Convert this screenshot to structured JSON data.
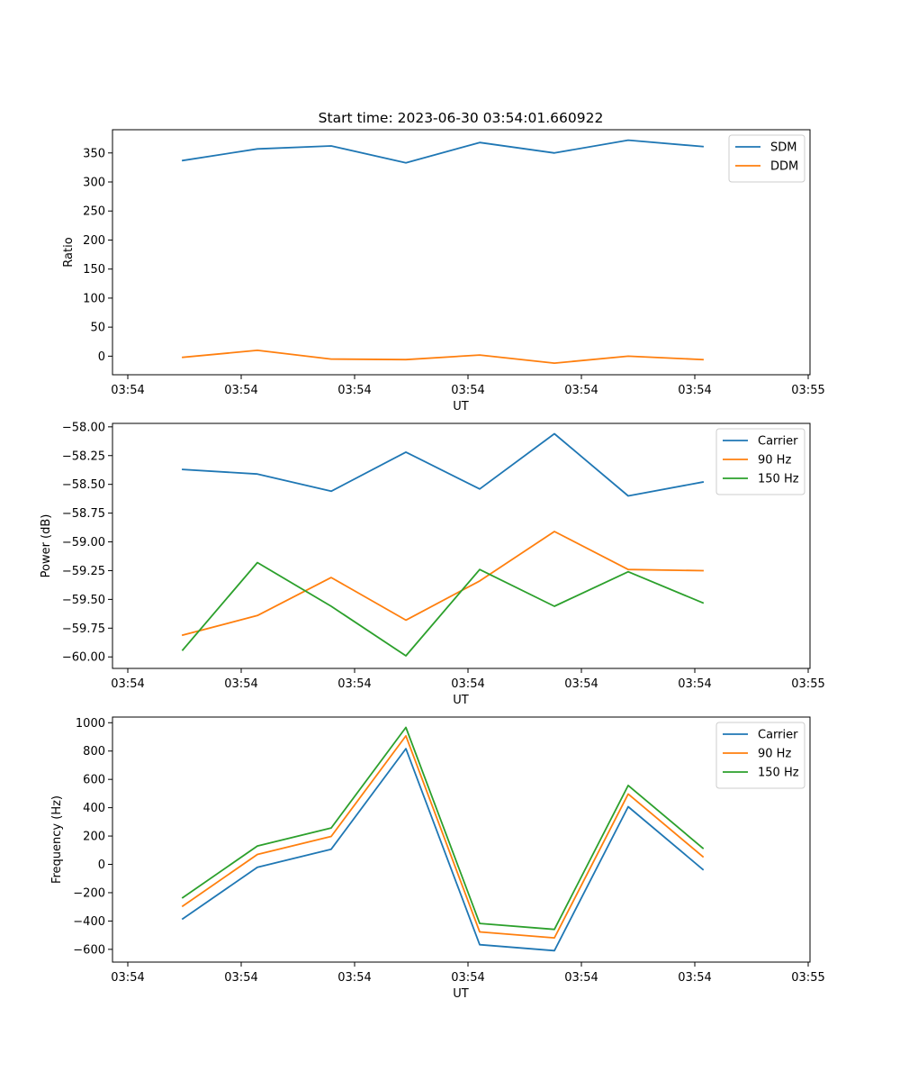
{
  "figure": {
    "title": "Start time: 2023-06-30 03:54:01.660922"
  },
  "chart_data": [
    {
      "type": "line",
      "xlabel": "UT",
      "ylabel": "Ratio",
      "x_tick_labels": [
        "03:54",
        "03:54",
        "03:54",
        "03:54",
        "03:54",
        "03:54",
        "03:55"
      ],
      "ylim": [
        -32,
        390
      ],
      "yticks": [
        0,
        50,
        100,
        150,
        200,
        250,
        300,
        350
      ],
      "legend_position": "top-right",
      "grid": false,
      "series": [
        {
          "name": "SDM",
          "color": "#1f77b4",
          "values": [
            337,
            357,
            362,
            333,
            368,
            350,
            372,
            361
          ]
        },
        {
          "name": "DDM",
          "color": "#ff7f0e",
          "values": [
            -2,
            10,
            -5,
            -6,
            2,
            -12,
            0,
            -6
          ]
        }
      ]
    },
    {
      "type": "line",
      "xlabel": "UT",
      "ylabel": "Power (dB)",
      "x_tick_labels": [
        "03:54",
        "03:54",
        "03:54",
        "03:54",
        "03:54",
        "03:54",
        "03:55"
      ],
      "ylim": [
        -60.1,
        -57.97
      ],
      "yticks": [
        -60.0,
        -59.75,
        -59.5,
        -59.25,
        -59.0,
        -58.75,
        -58.5,
        -58.25,
        -58.0
      ],
      "ytick_labels": [
        "−60.00",
        "−59.75",
        "−59.50",
        "−59.25",
        "−59.00",
        "−58.75",
        "−58.50",
        "−58.25",
        "−58.00"
      ],
      "legend_position": "top-right",
      "grid": false,
      "series": [
        {
          "name": "Carrier",
          "color": "#1f77b4",
          "values": [
            -58.37,
            -58.41,
            -58.56,
            -58.22,
            -58.54,
            -58.06,
            -58.6,
            -58.48
          ]
        },
        {
          "name": "90 Hz",
          "color": "#ff7f0e",
          "values": [
            -59.81,
            -59.64,
            -59.31,
            -59.68,
            -59.34,
            -58.91,
            -59.24,
            -59.25
          ]
        },
        {
          "name": "150 Hz",
          "color": "#2ca02c",
          "values": [
            -59.94,
            -59.18,
            -59.56,
            -59.99,
            -59.24,
            -59.56,
            -59.26,
            -59.53
          ]
        }
      ]
    },
    {
      "type": "line",
      "xlabel": "UT",
      "ylabel": "Frequency (Hz)",
      "x_tick_labels": [
        "03:54",
        "03:54",
        "03:54",
        "03:54",
        "03:54",
        "03:54",
        "03:55"
      ],
      "ylim": [
        -690,
        1040
      ],
      "yticks": [
        -600,
        -400,
        -200,
        0,
        200,
        400,
        600,
        800,
        1000
      ],
      "ytick_labels": [
        "−600",
        "−400",
        "−200",
        "0",
        "200",
        "400",
        "600",
        "800",
        "1000"
      ],
      "legend_position": "top-right",
      "grid": false,
      "series": [
        {
          "name": "Carrier",
          "color": "#1f77b4",
          "values": [
            -385,
            -20,
            107,
            817,
            -567,
            -609,
            407,
            -36
          ]
        },
        {
          "name": "90 Hz",
          "color": "#ff7f0e",
          "values": [
            -295,
            70,
            197,
            907,
            -477,
            -519,
            497,
            54
          ]
        },
        {
          "name": "150 Hz",
          "color": "#2ca02c",
          "values": [
            -235,
            130,
            257,
            967,
            -417,
            -459,
            557,
            114
          ]
        }
      ]
    }
  ]
}
